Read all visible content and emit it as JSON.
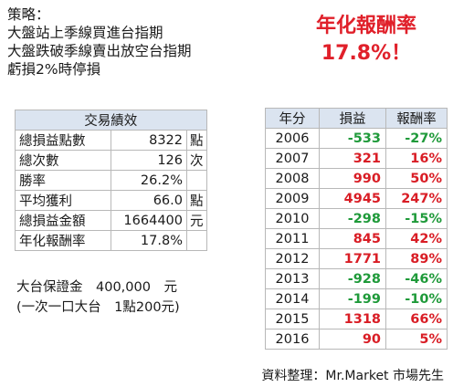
{
  "strategy": {
    "title": "策略：",
    "lines": [
      "大盤站上季線買進台指期",
      "大盤跌破季線賣出放空台指期",
      "虧損2%時停損"
    ]
  },
  "headline": {
    "label": "年化報酬率",
    "value": "17.8%！"
  },
  "performance": {
    "header": "交易績效",
    "rows": [
      {
        "label": "總損益點數",
        "value": "8322",
        "unit": "點"
      },
      {
        "label": "總次數",
        "value": "126",
        "unit": "次"
      },
      {
        "label": "勝率",
        "value": "26.2%",
        "unit": ""
      },
      {
        "label": "平均獲利",
        "value": "66.0",
        "unit": "點"
      },
      {
        "label": "總損益金額",
        "value": "1664400",
        "unit": "元"
      },
      {
        "label": "年化報酬率",
        "value": "17.8%",
        "unit": ""
      }
    ]
  },
  "margin": {
    "line1": "大台保證金　400,000　元",
    "line2": "(一次一口大台　1點200元)"
  },
  "yearly": {
    "headers": [
      "年分",
      "損益",
      "報酬率"
    ],
    "colors": {
      "negative": "#1f9a3a",
      "positive": "#d91d25"
    },
    "rows": [
      {
        "year": "2006",
        "pl": "-533",
        "rate": "-27%",
        "sign": "neg"
      },
      {
        "year": "2007",
        "pl": "321",
        "rate": "16%",
        "sign": "pos"
      },
      {
        "year": "2008",
        "pl": "990",
        "rate": "50%",
        "sign": "pos"
      },
      {
        "year": "2009",
        "pl": "4945",
        "rate": "247%",
        "sign": "pos"
      },
      {
        "year": "2010",
        "pl": "-298",
        "rate": "-15%",
        "sign": "neg"
      },
      {
        "year": "2011",
        "pl": "845",
        "rate": "42%",
        "sign": "pos"
      },
      {
        "year": "2012",
        "pl": "1771",
        "rate": "89%",
        "sign": "pos"
      },
      {
        "year": "2013",
        "pl": "-928",
        "rate": "-46%",
        "sign": "neg"
      },
      {
        "year": "2014",
        "pl": "-199",
        "rate": "-10%",
        "sign": "neg"
      },
      {
        "year": "2015",
        "pl": "1318",
        "rate": "66%",
        "sign": "pos"
      },
      {
        "year": "2016",
        "pl": "90",
        "rate": "5%",
        "sign": "pos"
      }
    ]
  },
  "source": "資料整理：Mr.Market 市場先生"
}
